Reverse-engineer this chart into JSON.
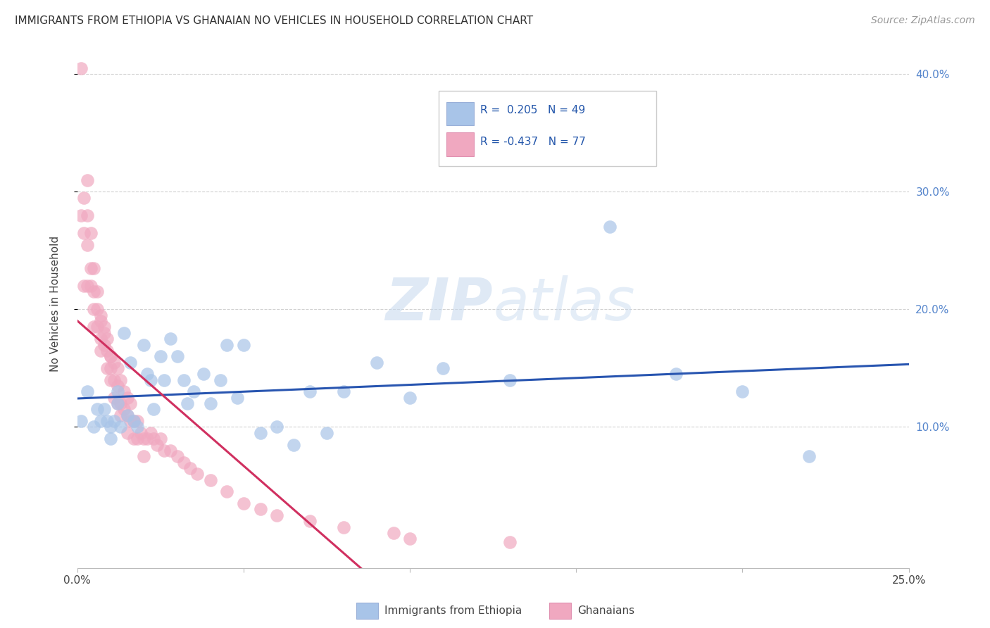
{
  "title": "IMMIGRANTS FROM ETHIOPIA VS GHANAIAN NO VEHICLES IN HOUSEHOLD CORRELATION CHART",
  "source": "Source: ZipAtlas.com",
  "ylabel": "No Vehicles in Household",
  "yticks": [
    "10.0%",
    "20.0%",
    "30.0%",
    "40.0%"
  ],
  "ytick_vals": [
    0.1,
    0.2,
    0.3,
    0.4
  ],
  "xlim": [
    0.0,
    0.25
  ],
  "ylim": [
    -0.02,
    0.43
  ],
  "color_blue": "#a8c4e8",
  "color_pink": "#f0a8c0",
  "color_blue_line": "#2855b0",
  "color_pink_line": "#d03060",
  "watermark_zip": "ZIP",
  "watermark_atlas": "atlas",
  "ethiopia_x": [
    0.001,
    0.003,
    0.005,
    0.006,
    0.007,
    0.008,
    0.009,
    0.01,
    0.01,
    0.011,
    0.012,
    0.012,
    0.013,
    0.014,
    0.015,
    0.016,
    0.017,
    0.018,
    0.02,
    0.021,
    0.022,
    0.023,
    0.025,
    0.026,
    0.028,
    0.03,
    0.032,
    0.033,
    0.035,
    0.038,
    0.04,
    0.043,
    0.045,
    0.048,
    0.05,
    0.055,
    0.06,
    0.065,
    0.07,
    0.075,
    0.08,
    0.09,
    0.1,
    0.11,
    0.13,
    0.16,
    0.18,
    0.2,
    0.22
  ],
  "ethiopia_y": [
    0.105,
    0.13,
    0.1,
    0.115,
    0.105,
    0.115,
    0.105,
    0.1,
    0.09,
    0.105,
    0.13,
    0.12,
    0.1,
    0.18,
    0.11,
    0.155,
    0.105,
    0.1,
    0.17,
    0.145,
    0.14,
    0.115,
    0.16,
    0.14,
    0.175,
    0.16,
    0.14,
    0.12,
    0.13,
    0.145,
    0.12,
    0.14,
    0.17,
    0.125,
    0.17,
    0.095,
    0.1,
    0.085,
    0.13,
    0.095,
    0.13,
    0.155,
    0.125,
    0.15,
    0.14,
    0.27,
    0.145,
    0.13,
    0.075
  ],
  "ghana_x": [
    0.001,
    0.001,
    0.002,
    0.002,
    0.002,
    0.003,
    0.003,
    0.003,
    0.003,
    0.004,
    0.004,
    0.004,
    0.005,
    0.005,
    0.005,
    0.005,
    0.006,
    0.006,
    0.006,
    0.007,
    0.007,
    0.007,
    0.007,
    0.008,
    0.008,
    0.008,
    0.009,
    0.009,
    0.009,
    0.01,
    0.01,
    0.01,
    0.01,
    0.011,
    0.011,
    0.011,
    0.012,
    0.012,
    0.012,
    0.013,
    0.013,
    0.013,
    0.014,
    0.014,
    0.015,
    0.015,
    0.015,
    0.016,
    0.016,
    0.017,
    0.017,
    0.018,
    0.018,
    0.019,
    0.02,
    0.02,
    0.021,
    0.022,
    0.023,
    0.024,
    0.025,
    0.026,
    0.028,
    0.03,
    0.032,
    0.034,
    0.036,
    0.04,
    0.045,
    0.05,
    0.055,
    0.06,
    0.07,
    0.08,
    0.095,
    0.1,
    0.13
  ],
  "ghana_y": [
    0.405,
    0.28,
    0.295,
    0.265,
    0.22,
    0.31,
    0.28,
    0.255,
    0.22,
    0.265,
    0.235,
    0.22,
    0.235,
    0.215,
    0.2,
    0.185,
    0.215,
    0.2,
    0.185,
    0.195,
    0.175,
    0.19,
    0.165,
    0.18,
    0.17,
    0.185,
    0.175,
    0.165,
    0.15,
    0.16,
    0.16,
    0.15,
    0.14,
    0.155,
    0.14,
    0.125,
    0.15,
    0.135,
    0.12,
    0.14,
    0.12,
    0.11,
    0.13,
    0.115,
    0.125,
    0.11,
    0.095,
    0.12,
    0.105,
    0.105,
    0.09,
    0.105,
    0.09,
    0.095,
    0.09,
    0.075,
    0.09,
    0.095,
    0.09,
    0.085,
    0.09,
    0.08,
    0.08,
    0.075,
    0.07,
    0.065,
    0.06,
    0.055,
    0.045,
    0.035,
    0.03,
    0.025,
    0.02,
    0.015,
    0.01,
    0.005,
    0.002
  ]
}
